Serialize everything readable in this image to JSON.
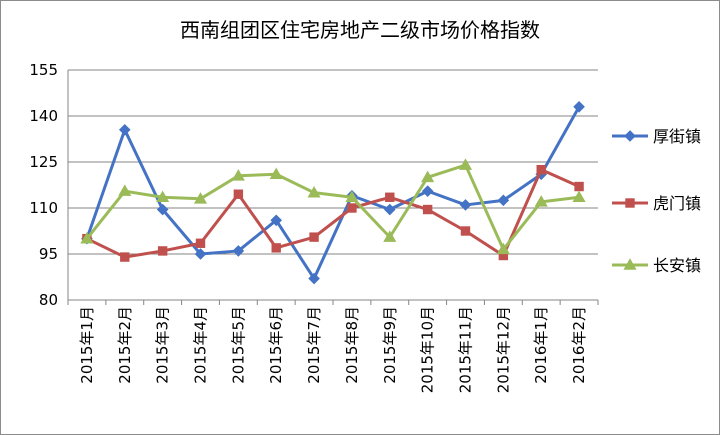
{
  "chart_data": {
    "type": "line",
    "title": "西南组团区住宅房地产二级市场价格指数",
    "xlabel": "",
    "ylabel": "",
    "ylim": [
      80,
      155
    ],
    "yticks": [
      80,
      95,
      110,
      125,
      140,
      155
    ],
    "grid": "horizontal",
    "legend_position": "right",
    "categories": [
      "2015年1月",
      "2015年2月",
      "2015年3月",
      "2015年4月",
      "2015年5月",
      "2015年6月",
      "2015年7月",
      "2015年8月",
      "2015年9月",
      "2015年10月",
      "2015年11月",
      "2015年12月",
      "2016年1月",
      "2016年2月"
    ],
    "series": [
      {
        "name": "厚街镇",
        "color": "#4472C4",
        "marker": "diamond",
        "values": [
          100,
          135.5,
          109.5,
          95,
          96,
          106,
          87,
          114,
          109.5,
          115.5,
          111,
          112.5,
          121,
          143
        ]
      },
      {
        "name": "虎门镇",
        "color": "#C0504D",
        "marker": "square",
        "values": [
          100,
          94,
          96,
          98.5,
          114.5,
          97,
          100.5,
          110,
          113.5,
          109.5,
          102.5,
          94.5,
          122.5,
          117
        ]
      },
      {
        "name": "长安镇",
        "color": "#9BBB59",
        "marker": "triangle",
        "values": [
          100,
          115.5,
          113.5,
          113,
          120.5,
          121,
          115,
          113.5,
          100.5,
          120,
          124,
          96.5,
          112,
          113.5
        ]
      }
    ]
  }
}
